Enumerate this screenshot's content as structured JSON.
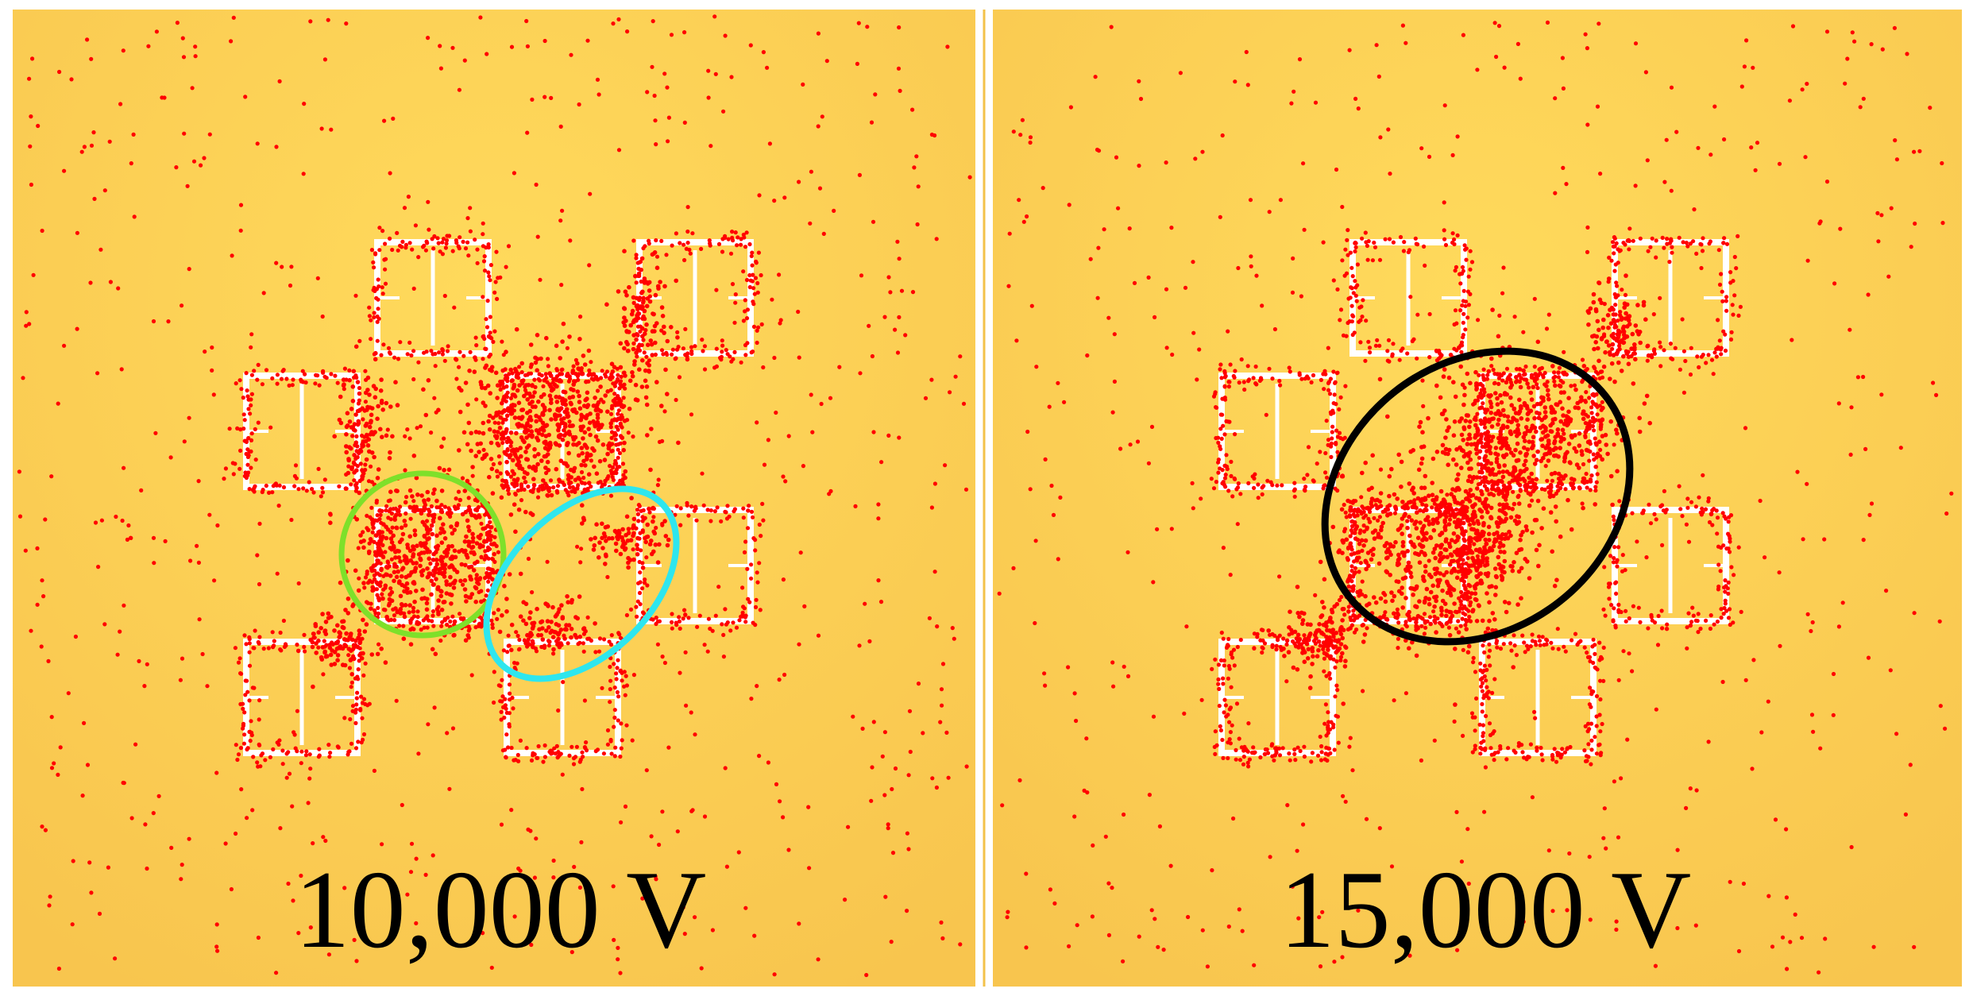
{
  "panels": [
    {
      "id": "left",
      "label": "10,000 V",
      "annotations": [
        {
          "name": "green-circle",
          "color": "#7ee02a"
        },
        {
          "name": "cyan-ellipse",
          "color": "#2ee6ee"
        }
      ]
    },
    {
      "id": "right",
      "label": "15,000 V",
      "annotations": [
        {
          "name": "black-ellipse",
          "color": "#000000"
        }
      ]
    }
  ],
  "colors": {
    "background": "#fdd558",
    "particles": "#ff0000",
    "electrodes": "#ffffff"
  }
}
